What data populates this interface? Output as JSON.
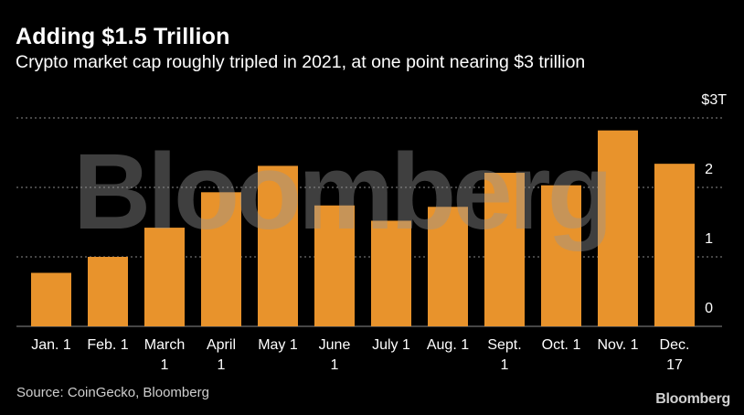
{
  "header": {
    "title": "Adding $1.5 Trillion",
    "subtitle": "Crypto market cap roughly tripled in 2021, at one point nearing $3 trillion"
  },
  "footer": {
    "source": "Source: CoinGecko, Bloomberg",
    "brand": "Bloomberg"
  },
  "watermark": "Bloomberg",
  "colors": {
    "bar": "#E8932C",
    "grid": "#8a8a8a",
    "background": "#000000",
    "text": "#ffffff"
  },
  "chart_data": {
    "type": "bar",
    "categories": [
      [
        "Jan. 1"
      ],
      [
        "Feb. 1"
      ],
      [
        "March",
        "1"
      ],
      [
        "April",
        "1"
      ],
      [
        "May 1"
      ],
      [
        "June",
        "1"
      ],
      [
        "July 1"
      ],
      [
        "Aug. 1"
      ],
      [
        "Sept.",
        "1"
      ],
      [
        "Oct. 1"
      ],
      [
        "Nov. 1"
      ],
      [
        "Dec.",
        "17"
      ]
    ],
    "values": [
      0.77,
      1.0,
      1.42,
      1.93,
      2.31,
      1.74,
      1.52,
      1.72,
      2.21,
      2.03,
      2.82,
      2.34
    ],
    "ylim": [
      0,
      3
    ],
    "yticks": [
      {
        "value": 0,
        "label": "0"
      },
      {
        "value": 1,
        "label": "1"
      },
      {
        "value": 2,
        "label": "2"
      },
      {
        "value": 3,
        "label": "$3T"
      }
    ],
    "grid": true,
    "xlabel": "",
    "ylabel": ""
  }
}
